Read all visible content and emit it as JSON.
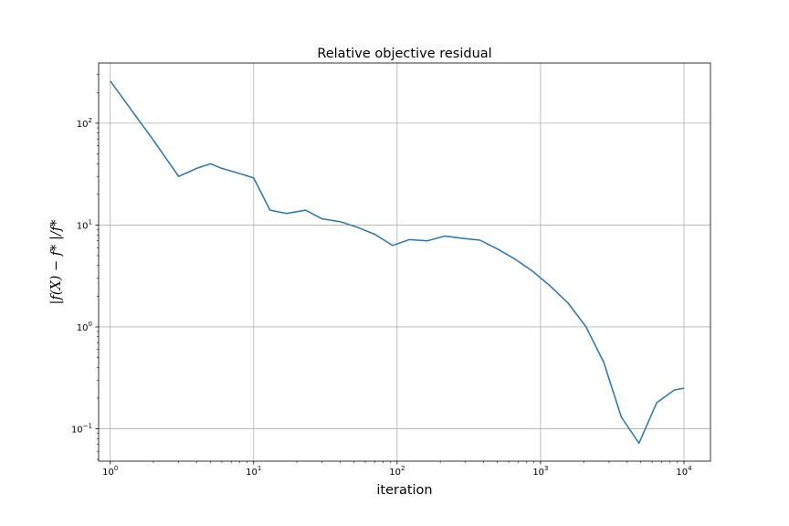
{
  "chart_data": {
    "type": "line",
    "title": "Relative objective residual",
    "xlabel": "iteration",
    "ylabel": "|f(X) − f* |/f*",
    "xscale": "log",
    "yscale": "log",
    "xlim": [
      0.83,
      15300
    ],
    "ylim": [
      0.048,
      390
    ],
    "grid": true,
    "line_color": "#1f77b4",
    "x_ticks": [
      {
        "value": 1,
        "base": "10",
        "exp": "0"
      },
      {
        "value": 10,
        "base": "10",
        "exp": "1"
      },
      {
        "value": 100,
        "base": "10",
        "exp": "2"
      },
      {
        "value": 1000,
        "base": "10",
        "exp": "3"
      },
      {
        "value": 10000,
        "base": "10",
        "exp": "4"
      }
    ],
    "y_ticks": [
      {
        "value": 0.1,
        "base": "10",
        "exp": "−1"
      },
      {
        "value": 1,
        "base": "10",
        "exp": "0"
      },
      {
        "value": 10,
        "base": "10",
        "exp": "1"
      },
      {
        "value": 100,
        "base": "10",
        "exp": "2"
      }
    ],
    "series": [
      {
        "x": [
          1,
          2,
          3,
          4,
          5,
          6,
          8,
          10,
          13,
          17,
          23,
          30,
          40,
          53,
          70,
          93,
          122,
          163,
          216,
          286,
          379,
          503,
          668,
          885,
          1176,
          1563,
          2076,
          2756,
          3660,
          4861,
          6456,
          8575,
          10000
        ],
        "y": [
          260,
          68,
          30,
          36,
          40,
          36,
          32,
          29,
          14,
          13,
          14,
          11.5,
          10.8,
          9.5,
          8.1,
          6.3,
          7.2,
          7.0,
          7.8,
          7.4,
          7.1,
          5.8,
          4.6,
          3.5,
          2.5,
          1.7,
          1.0,
          0.45,
          0.13,
          0.072,
          0.18,
          0.24,
          0.25
        ]
      }
    ]
  }
}
